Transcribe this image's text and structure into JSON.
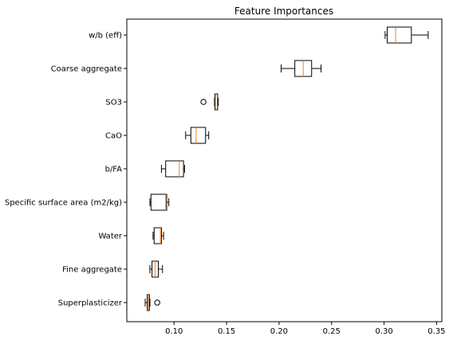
{
  "chart_data": {
    "type": "boxplot",
    "title": "Feature Importances",
    "xlabel": "",
    "ylabel": "",
    "xlim": [
      0.055,
      0.355
    ],
    "xticks": [
      0.1,
      0.15,
      0.2,
      0.25,
      0.3,
      0.35
    ],
    "xtick_labels": [
      "0.10",
      "0.15",
      "0.20",
      "0.25",
      "0.30",
      "0.35"
    ],
    "grid": false,
    "box_edge_color": "#000000",
    "median_color": "#ff7f0e",
    "categories": [
      "w/b (eff)",
      "Coarse aggregate",
      "SO3",
      "CaO",
      "b/FA",
      "Specific surface area (m2/kg)",
      "Water",
      "Fine aggregate",
      "Superplasticizer"
    ],
    "boxes": [
      {
        "label": "w/b (eff)",
        "whislo": 0.301,
        "q1": 0.303,
        "med": 0.311,
        "q3": 0.326,
        "whishi": 0.342,
        "fliers": []
      },
      {
        "label": "Coarse aggregate",
        "whislo": 0.202,
        "q1": 0.215,
        "med": 0.223,
        "q3": 0.231,
        "whishi": 0.24,
        "fliers": []
      },
      {
        "label": "SO3",
        "whislo": 0.1385,
        "q1": 0.1388,
        "med": 0.1395,
        "q3": 0.1415,
        "whishi": 0.142,
        "fliers": [
          0.128
        ]
      },
      {
        "label": "CaO",
        "whislo": 0.111,
        "q1": 0.116,
        "med": 0.121,
        "q3": 0.13,
        "whishi": 0.133,
        "fliers": []
      },
      {
        "label": "b/FA",
        "whislo": 0.088,
        "q1": 0.092,
        "med": 0.105,
        "q3": 0.109,
        "whishi": 0.11,
        "fliers": []
      },
      {
        "label": "Specific surface area (m2/kg)",
        "whislo": 0.077,
        "q1": 0.078,
        "med": 0.092,
        "q3": 0.093,
        "whishi": 0.095,
        "fliers": []
      },
      {
        "label": "Water",
        "whislo": 0.08,
        "q1": 0.081,
        "med": 0.087,
        "q3": 0.088,
        "whishi": 0.09,
        "fliers": []
      },
      {
        "label": "Fine aggregate",
        "whislo": 0.077,
        "q1": 0.079,
        "med": 0.082,
        "q3": 0.085,
        "whishi": 0.089,
        "fliers": []
      },
      {
        "label": "Superplasticizer",
        "whislo": 0.0725,
        "q1": 0.0745,
        "med": 0.0755,
        "q3": 0.0765,
        "whishi": 0.077,
        "fliers": [
          0.084
        ]
      }
    ]
  }
}
